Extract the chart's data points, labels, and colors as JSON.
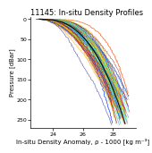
{
  "title": "11145: In-situ Density Profiles",
  "xlabel": "In-situ Density Anomaly, ρ - 1000 [kg m⁻³]",
  "ylabel": "Pressure [dBar]",
  "xlim": [
    22.5,
    29.5
  ],
  "ylim": [
    270,
    -5
  ],
  "xticks": [
    24,
    26,
    28
  ],
  "yticks": [
    0,
    50,
    100,
    150,
    200,
    250
  ],
  "n_profiles": 90,
  "seed": 7,
  "title_fontsize": 6,
  "label_fontsize": 5,
  "tick_fontsize": 4.5,
  "background_color": "#ffffff"
}
